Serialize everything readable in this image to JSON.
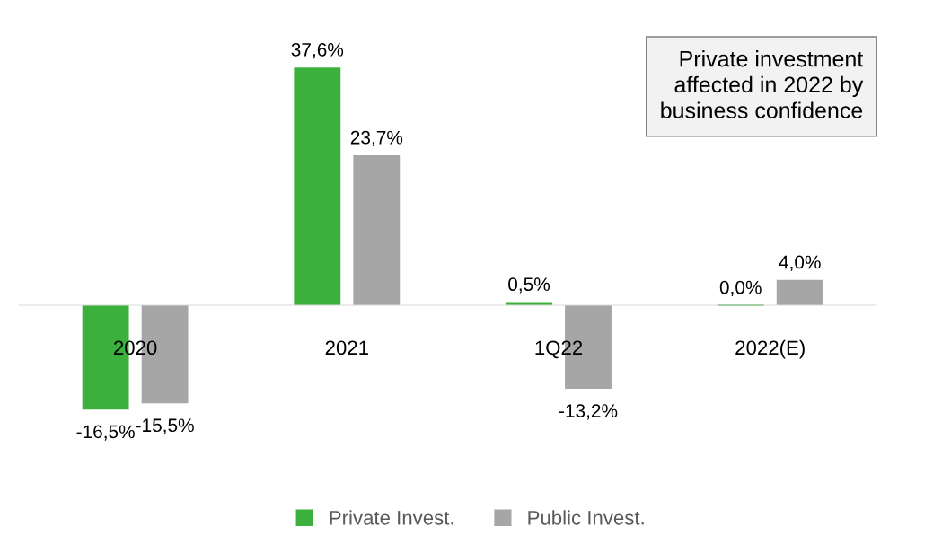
{
  "chart_data": {
    "type": "bar",
    "categories": [
      "2020",
      "2021",
      "1Q22",
      "2022(E)"
    ],
    "series": [
      {
        "name": "Private Invest.",
        "color": "#3cb03c",
        "values": [
          -16.5,
          37.6,
          0.5,
          0.0
        ],
        "value_labels": [
          "-16,5%",
          "37,6%",
          "0,5%",
          "0,0%"
        ]
      },
      {
        "name": "Public Invest.",
        "color": "#a6a6a6",
        "values": [
          -15.5,
          23.7,
          -13.2,
          4.0
        ],
        "value_labels": [
          "-15,5%",
          "23,7%",
          "-13,2%",
          "4,0%"
        ]
      }
    ],
    "annotations": [
      "Private investment\naffected in 2022 by\nbusiness confidence"
    ],
    "legend": "bottom",
    "grid": false
  }
}
